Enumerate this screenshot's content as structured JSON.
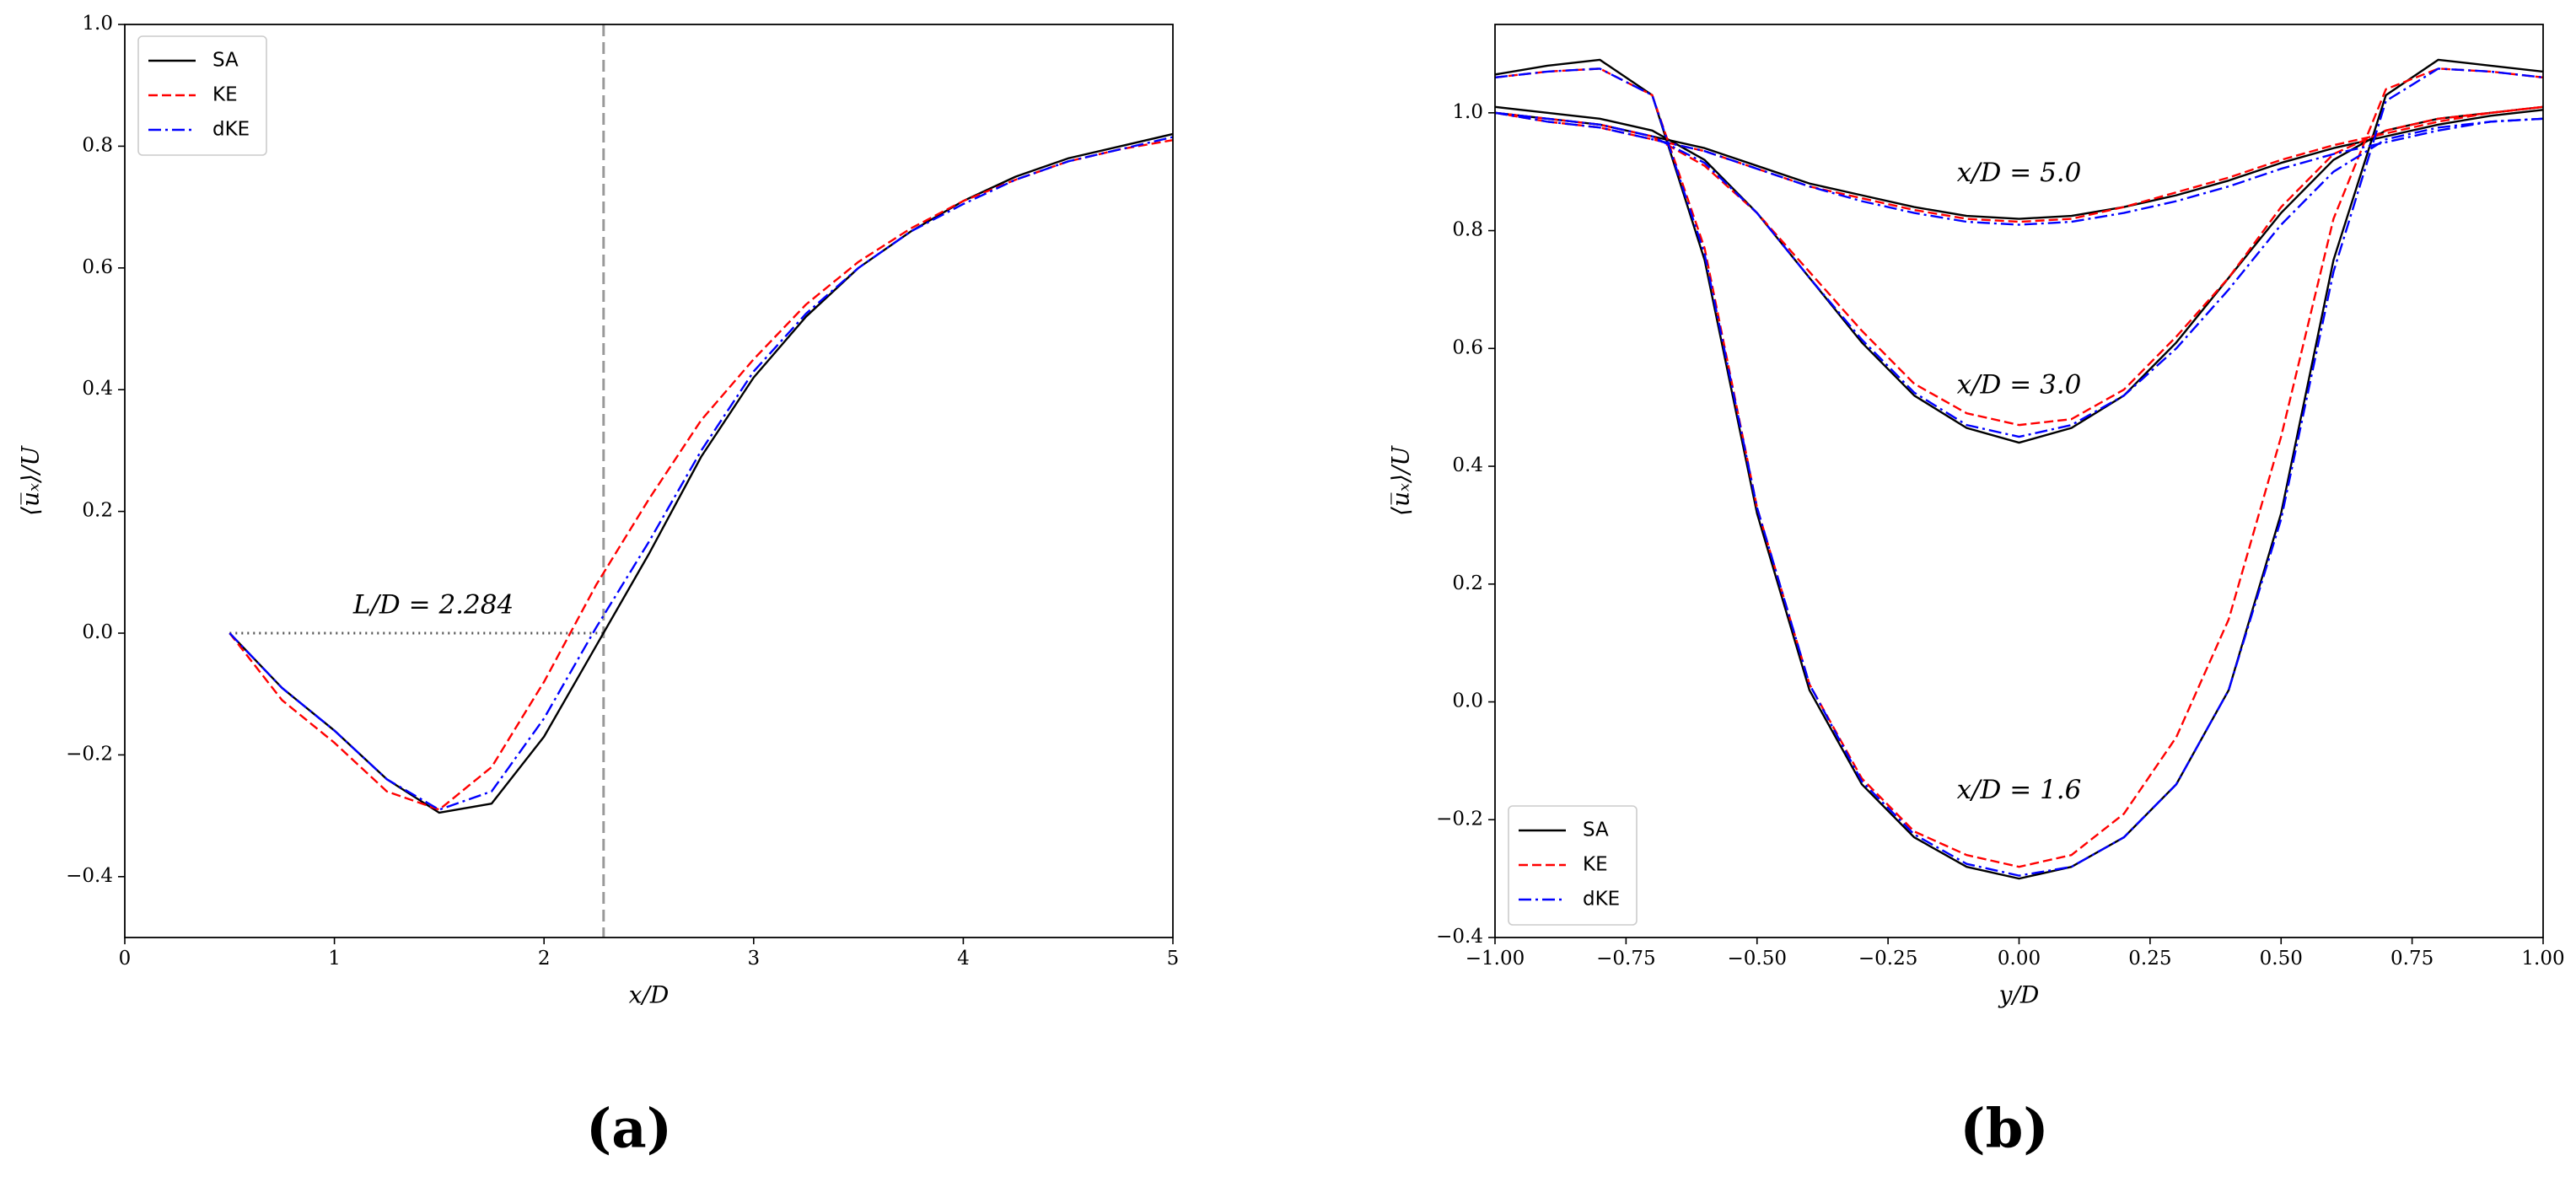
{
  "chart_data": [
    {
      "type": "line",
      "caption": "(a)",
      "x_label": "x/D",
      "y_label": "⟨u̅ₓ⟩/U",
      "xlim": [
        0,
        5
      ],
      "xticks": [
        0,
        1,
        2,
        3,
        4,
        5
      ],
      "ylim": [
        -0.5,
        1.0
      ],
      "yticks": [
        {
          "value": -0.4,
          "label": "−0.4"
        },
        {
          "value": -0.2,
          "label": "−0.2"
        },
        {
          "value": 0,
          "label": "0.0"
        },
        {
          "value": 0.2,
          "label": "0.2"
        },
        {
          "value": 0.4,
          "label": "0.4"
        },
        {
          "value": 0.6,
          "label": "0.6"
        },
        {
          "value": 0.8,
          "label": "0.8"
        },
        {
          "value": 1.0,
          "label": "1.0"
        }
      ],
      "grid": false,
      "legend": "upper left",
      "x": [
        0.5,
        0.75,
        1.0,
        1.25,
        1.5,
        1.75,
        2.0,
        2.25,
        2.5,
        2.75,
        3.0,
        3.25,
        3.5,
        3.75,
        4.0,
        4.25,
        4.5,
        4.75,
        5.0
      ],
      "series": [
        {
          "name": "SA",
          "color": "#000000",
          "style": "solid",
          "values": [
            0,
            -0.09,
            -0.16,
            -0.24,
            -0.295,
            -0.28,
            -0.17,
            -0.02,
            0.13,
            0.29,
            0.42,
            0.52,
            0.6,
            0.66,
            0.71,
            0.75,
            0.78,
            0.8,
            0.82
          ]
        },
        {
          "name": "KE",
          "color": "#ff0000",
          "style": "dashed",
          "values": [
            0,
            -0.11,
            -0.18,
            -0.26,
            -0.29,
            -0.22,
            -0.08,
            0.08,
            0.22,
            0.35,
            0.45,
            0.54,
            0.61,
            0.665,
            0.71,
            0.745,
            0.775,
            0.795,
            0.81
          ]
        },
        {
          "name": "dKE",
          "color": "#0000ff",
          "style": "dashdot",
          "values": [
            0,
            -0.09,
            -0.16,
            -0.24,
            -0.29,
            -0.26,
            -0.14,
            0.01,
            0.15,
            0.3,
            0.43,
            0.525,
            0.6,
            0.66,
            0.705,
            0.745,
            0.775,
            0.795,
            0.815
          ]
        }
      ],
      "reference_x": 2.284,
      "reference_line": {
        "x": [
          0.5,
          2.284
        ],
        "y": 0
      },
      "annotation": "L/D = 2.284"
    },
    {
      "type": "line",
      "caption": "(b)",
      "x_label": "y/D",
      "y_label": "⟨u̅ₓ⟩/U",
      "xlim": [
        -1,
        1
      ],
      "xticks": [
        {
          "value": -1,
          "label": "−1.00"
        },
        {
          "value": -0.75,
          "label": "−0.75"
        },
        {
          "value": -0.5,
          "label": "−0.50"
        },
        {
          "value": -0.25,
          "label": "−0.25"
        },
        {
          "value": 0,
          "label": "0.00"
        },
        {
          "value": 0.25,
          "label": "0.25"
        },
        {
          "value": 0.5,
          "label": "0.50"
        },
        {
          "value": 0.75,
          "label": "0.75"
        },
        {
          "value": 1,
          "label": "1.00"
        }
      ],
      "ylim": [
        -0.4,
        1.15
      ],
      "yticks": [
        {
          "value": -0.4,
          "label": "−0.4"
        },
        {
          "value": -0.2,
          "label": "−0.2"
        },
        {
          "value": 0,
          "label": "0.0"
        },
        {
          "value": 0.2,
          "label": "0.2"
        },
        {
          "value": 0.4,
          "label": "0.4"
        },
        {
          "value": 0.6,
          "label": "0.6"
        },
        {
          "value": 0.8,
          "label": "0.8"
        },
        {
          "value": 1.0,
          "label": "1.0"
        }
      ],
      "grid": false,
      "legend": "lower left",
      "profile_labels": [
        "x/D = 5.0",
        "x/D = 3.0",
        "x/D = 1.6"
      ],
      "x": [
        -1,
        -0.9,
        -0.8,
        -0.7,
        -0.6,
        -0.5,
        -0.4,
        -0.3,
        -0.2,
        -0.1,
        0,
        0.1,
        0.2,
        0.3,
        0.4,
        0.5,
        0.6,
        0.7,
        0.8,
        0.9,
        1
      ],
      "series": [
        {
          "name": "SA",
          "color": "#000000",
          "style": "solid",
          "values": [
            [
              1.0,
              0.99,
              0.98,
              0.96,
              0.94,
              0.91,
              0.88,
              0.86,
              0.84,
              0.825,
              0.82,
              0.825,
              0.84,
              0.86,
              0.885,
              0.915,
              0.94,
              0.96,
              0.98,
              0.995,
              1.005
            ],
            [
              1.01,
              1.0,
              0.99,
              0.97,
              0.92,
              0.83,
              0.72,
              0.61,
              0.52,
              0.465,
              0.44,
              0.465,
              0.52,
              0.61,
              0.72,
              0.83,
              0.92,
              0.97,
              0.99,
              1.0,
              1.01
            ],
            [
              1.065,
              1.08,
              1.09,
              1.03,
              0.75,
              0.32,
              0.02,
              -0.14,
              -0.23,
              -0.28,
              -0.3,
              -0.28,
              -0.23,
              -0.14,
              0.02,
              0.32,
              0.75,
              1.03,
              1.09,
              1.08,
              1.07
            ]
          ]
        },
        {
          "name": "KE",
          "color": "#ff0000",
          "style": "dashed",
          "values": [
            [
              1.0,
              0.985,
              0.975,
              0.955,
              0.935,
              0.905,
              0.875,
              0.855,
              0.835,
              0.82,
              0.815,
              0.82,
              0.84,
              0.865,
              0.89,
              0.92,
              0.945,
              0.965,
              0.985,
              1.0,
              1.01
            ],
            [
              1.0,
              0.99,
              0.98,
              0.96,
              0.91,
              0.83,
              0.73,
              0.63,
              0.54,
              0.49,
              0.47,
              0.48,
              0.53,
              0.62,
              0.72,
              0.84,
              0.93,
              0.97,
              0.99,
              1.0,
              1.01
            ],
            [
              1.06,
              1.07,
              1.075,
              1.03,
              0.77,
              0.33,
              0.03,
              -0.13,
              -0.22,
              -0.26,
              -0.28,
              -0.26,
              -0.19,
              -0.06,
              0.14,
              0.45,
              0.82,
              1.04,
              1.075,
              1.07,
              1.06
            ]
          ]
        },
        {
          "name": "dKE",
          "color": "#0000ff",
          "style": "dashdot",
          "values": [
            [
              1.0,
              0.985,
              0.975,
              0.955,
              0.935,
              0.905,
              0.875,
              0.85,
              0.83,
              0.815,
              0.81,
              0.815,
              0.83,
              0.85,
              0.875,
              0.905,
              0.93,
              0.95,
              0.97,
              0.985,
              0.99
            ],
            [
              1.0,
              0.99,
              0.98,
              0.96,
              0.915,
              0.83,
              0.72,
              0.615,
              0.525,
              0.47,
              0.45,
              0.47,
              0.52,
              0.6,
              0.7,
              0.81,
              0.9,
              0.955,
              0.975,
              0.985,
              0.99
            ],
            [
              1.06,
              1.07,
              1.075,
              1.03,
              0.76,
              0.33,
              0.03,
              -0.135,
              -0.225,
              -0.275,
              -0.295,
              -0.28,
              -0.23,
              -0.14,
              0.02,
              0.31,
              0.73,
              1.02,
              1.075,
              1.07,
              1.06
            ]
          ]
        }
      ]
    }
  ]
}
